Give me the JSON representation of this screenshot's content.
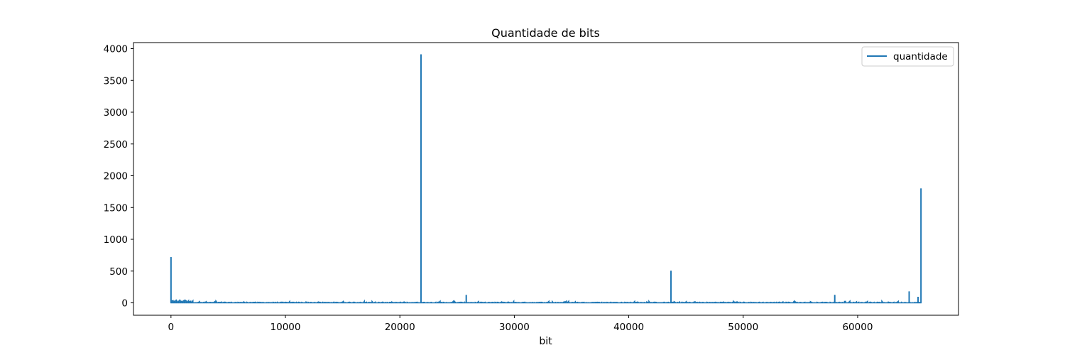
{
  "chart_data": {
    "type": "line",
    "title": "Quantidade de bits",
    "xlabel": "bit",
    "ylabel": "",
    "xlim": [
      -3277,
      68812
    ],
    "ylim": [
      -195,
      4095
    ],
    "xticks": [
      0,
      10000,
      20000,
      30000,
      40000,
      50000,
      60000
    ],
    "yticks": [
      0,
      500,
      1000,
      1500,
      2000,
      2500,
      3000,
      3500,
      4000
    ],
    "grid": false,
    "legend_position": "top-right",
    "series": [
      {
        "name": "quantidade",
        "color": "#1f77b4",
        "baseline_noise_max": 30,
        "spikes": [
          {
            "x": 0,
            "y": 720
          },
          {
            "x": 21845,
            "y": 3910
          },
          {
            "x": 25800,
            "y": 125
          },
          {
            "x": 43690,
            "y": 505
          },
          {
            "x": 58000,
            "y": 125
          },
          {
            "x": 64500,
            "y": 180
          },
          {
            "x": 65280,
            "y": 95
          },
          {
            "x": 65535,
            "y": 1800
          }
        ]
      }
    ]
  }
}
